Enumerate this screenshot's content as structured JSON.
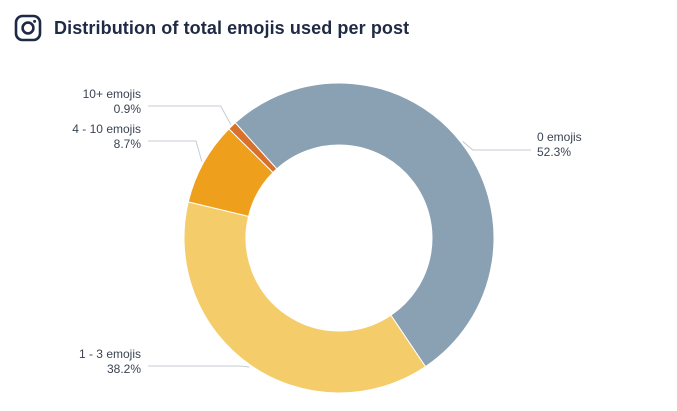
{
  "header": {
    "title": "Distribution of total emojis used per post",
    "icon": "instagram-icon"
  },
  "chart_data": {
    "type": "pie",
    "variant": "donut",
    "title": "Distribution of total emojis used per post",
    "slices": [
      {
        "label": "0 emojis",
        "value": 52.3,
        "display": "52.3%",
        "color": "#8aa0b3"
      },
      {
        "label": "1 - 3 emojis",
        "value": 38.2,
        "display": "38.2%",
        "color": "#f4cc6a"
      },
      {
        "label": "4 - 10 emojis",
        "value": 8.7,
        "display": "8.7%",
        "color": "#ee9f1b"
      },
      {
        "label": "10+ emojis",
        "value": 0.9,
        "display": "0.9%",
        "color": "#d8712b"
      }
    ]
  }
}
